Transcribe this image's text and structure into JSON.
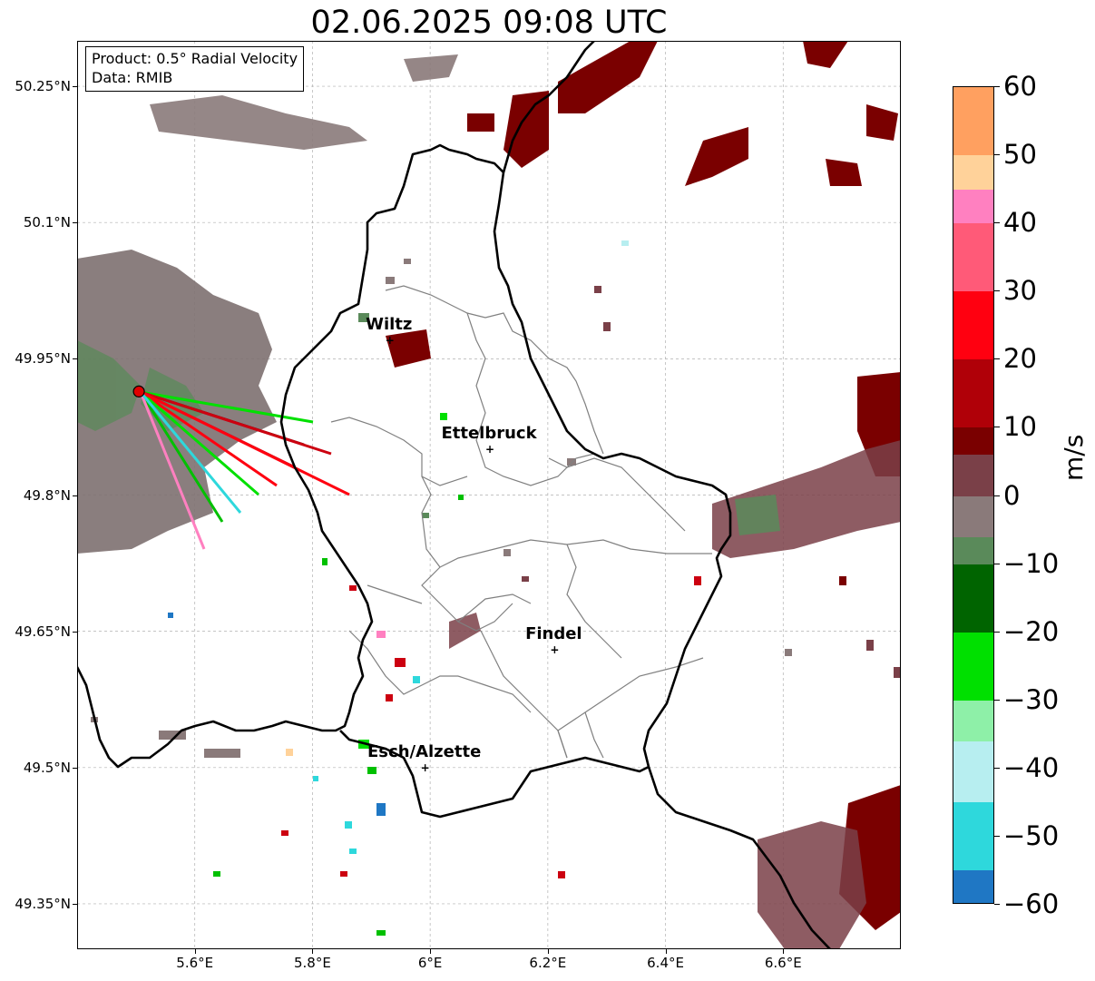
{
  "title": "02.06.2025 09:08 UTC",
  "info_box": {
    "product": "Product: 0.5° Radial Velocity",
    "data": "Data: RMIB"
  },
  "axes": {
    "lat_ticks": [
      "50.25°N",
      "50.1°N",
      "49.95°N",
      "49.8°N",
      "49.65°N",
      "49.5°N",
      "49.35°N"
    ],
    "lon_ticks": [
      "5.6°E",
      "5.8°E",
      "6°E",
      "6.2°E",
      "6.4°E",
      "6.6°E"
    ],
    "lat_values": [
      50.25,
      50.1,
      49.95,
      49.8,
      49.65,
      49.5,
      49.35
    ],
    "lon_values": [
      5.6,
      5.8,
      6.0,
      6.2,
      6.4,
      6.6
    ],
    "lon_range": [
      5.4,
      6.8
    ],
    "lat_range": [
      49.3,
      50.3
    ],
    "grid": true
  },
  "colorbar": {
    "unit": "m/s",
    "range": [
      -60,
      60
    ],
    "tick_labels": [
      "60",
      "50",
      "40",
      "30",
      "20",
      "10",
      "0",
      "−10",
      "−20",
      "−30",
      "−40",
      "−50",
      "−60"
    ],
    "colors": {
      "blue_low": "#1f77c4",
      "cyan": "#2ed8dc",
      "light_cyan": "#b7eef0",
      "light_green": "#8ef0a8",
      "bright_green": "#00e000",
      "dark_green": "#006400",
      "gray_green": "#5a8a5a",
      "gray": "#8a7a7a",
      "brown_maroon": "#7a4048",
      "maroon": "#7a0000",
      "red": "#ff0010",
      "pink": "#ff80c0",
      "peach": "#ffd29a",
      "orange": "#ffa060"
    }
  },
  "cities": [
    {
      "name": "Wiltz",
      "lon": 5.93,
      "lat": 49.97
    },
    {
      "name": "Ettelbruck",
      "lon": 6.1,
      "lat": 49.85
    },
    {
      "name": "Findel",
      "lon": 6.21,
      "lat": 49.63
    },
    {
      "name": "Esch/Alzette",
      "lon": 5.99,
      "lat": 49.5
    }
  ],
  "radar_site": {
    "lon": 5.505,
    "lat": 49.914,
    "color": "#e00000"
  }
}
